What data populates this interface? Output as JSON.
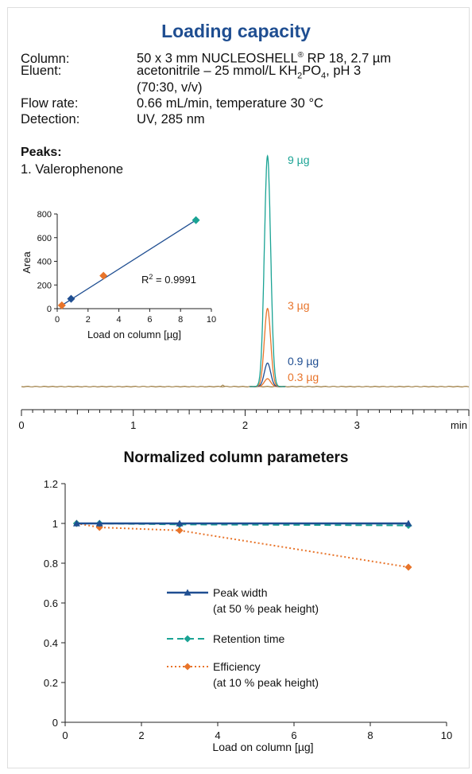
{
  "title": "Loading capacity",
  "conditions": [
    {
      "label": "Column:",
      "value_main": "50 x 3 mm NUCLEOSHELL",
      "value_sup": "®",
      "value_rest": " RP 18, 2.7 µm"
    },
    {
      "label": "Eluent:",
      "value_main": "acetonitrile – 25 mmol/L KH",
      "value_sub1": "2",
      "value_mid": "PO",
      "value_sub2": "4",
      "value_rest": ", pH 3",
      "value_line2": "(70:30, v/v)"
    },
    {
      "label": "Flow rate:",
      "value": "0.66 mL/min, temperature 30 °C"
    },
    {
      "label": "Detection:",
      "value": "UV, 285 nm"
    }
  ],
  "peaks_heading": "Peaks:",
  "peaks": [
    "1. Valerophenone"
  ],
  "chart_data": [
    {
      "type": "line",
      "name": "chromatogram",
      "x_ticks": [
        0,
        1,
        2,
        3
      ],
      "x_unit_label": "min",
      "xlim": [
        0,
        4
      ],
      "peak_time": 2.2,
      "traces": [
        {
          "label": "9 µg",
          "height": 1.0,
          "color": "#1aa394"
        },
        {
          "label": "3 µg",
          "height": 0.339,
          "color": "#e8742a"
        },
        {
          "label": "0.9 µg",
          "height": 0.102,
          "color": "#1f4e91"
        },
        {
          "label": "0.3 µg",
          "height": 0.034,
          "color": "#e8742a"
        }
      ]
    },
    {
      "type": "scatter",
      "name": "inset-calibration",
      "xlabel": "Load on column [µg]",
      "ylabel": "Area",
      "xlim": [
        0,
        10
      ],
      "ylim": [
        0,
        800
      ],
      "x_ticks": [
        0,
        2,
        4,
        6,
        8,
        10
      ],
      "y_ticks": [
        0,
        200,
        400,
        600,
        800
      ],
      "annotation": {
        "text_pre": "R",
        "text_sup": "2",
        "text_post": " = 0.9991"
      },
      "points": [
        {
          "x": 0.3,
          "y": 28,
          "color": "#e8742a"
        },
        {
          "x": 0.9,
          "y": 83,
          "color": "#1f4e91"
        },
        {
          "x": 3,
          "y": 278,
          "color": "#e8742a"
        },
        {
          "x": 9,
          "y": 748,
          "color": "#1aa394"
        }
      ],
      "fit_line": {
        "x": [
          0.3,
          9
        ],
        "y": [
          28,
          748
        ],
        "color": "#1f4e91"
      }
    },
    {
      "type": "line",
      "name": "normalized-parameters",
      "title": "Normalized column parameters",
      "xlabel": "Load on column [µg]",
      "ylabel": "",
      "xlim": [
        0,
        10
      ],
      "ylim": [
        0,
        1.2
      ],
      "x_ticks": [
        0,
        2,
        4,
        6,
        8,
        10
      ],
      "y_ticks": [
        0,
        0.2,
        0.4,
        0.6,
        0.8,
        1,
        1.2
      ],
      "x": [
        0.3,
        0.9,
        3,
        9
      ],
      "series": [
        {
          "name": "Peak width",
          "name_line2": "(at 50 % peak height)",
          "values": [
            1,
            1,
            1,
            1
          ],
          "color": "#1f4e91",
          "dash": "",
          "marker": "triangle",
          "width": 2.5
        },
        {
          "name": "Retention time",
          "name_line2": "",
          "values": [
            1,
            1,
            0.995,
            0.99
          ],
          "color": "#1aa394",
          "dash": "8,5",
          "marker": "diamond",
          "width": 2
        },
        {
          "name": "Efficiency",
          "name_line2": "(at 10 % peak height)",
          "values": [
            1,
            0.98,
            0.965,
            0.78
          ],
          "color": "#e8742a",
          "dash": "2,3",
          "marker": "diamond",
          "width": 2
        }
      ]
    }
  ]
}
